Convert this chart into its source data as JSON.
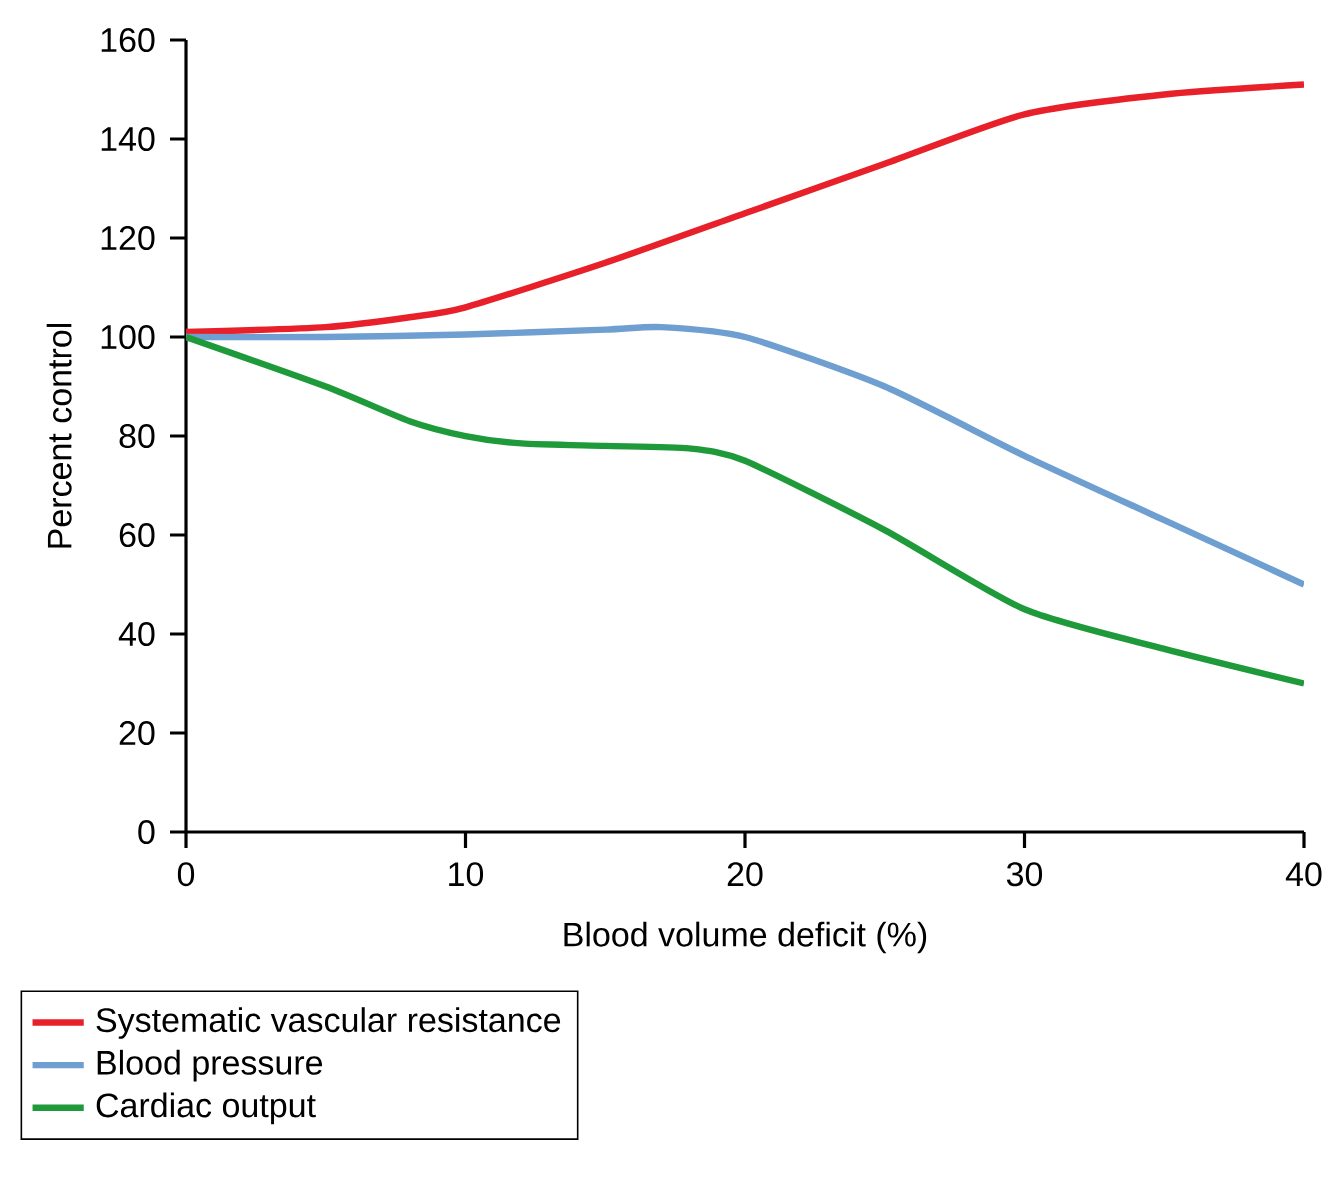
{
  "chart_data": {
    "type": "line",
    "xlabel": "Blood volume deficit (%)",
    "ylabel": "Percent control",
    "xlim": [
      0,
      40
    ],
    "xticks": [
      0,
      10,
      20,
      30,
      40
    ],
    "ylim": [
      0,
      160
    ],
    "yticks": [
      0,
      20,
      40,
      60,
      80,
      100,
      120,
      140,
      160
    ],
    "grid": false,
    "legend": "bottom",
    "marker": "none",
    "line_style": "solid",
    "series": [
      {
        "name": "Systematic vascular resistance",
        "color": "#e8202a",
        "x": [
          0,
          5,
          8,
          10,
          15,
          20,
          25,
          30,
          35,
          40
        ],
        "values": [
          101,
          102,
          104,
          106,
          115,
          125,
          135,
          145,
          149,
          151
        ]
      },
      {
        "name": "Blood pressure",
        "color": "#6e9fd0",
        "x": [
          0,
          5,
          10,
          15,
          17,
          20,
          25,
          30,
          35,
          40
        ],
        "values": [
          100,
          100,
          100.5,
          101.5,
          102,
          100,
          90,
          76,
          63,
          50
        ]
      },
      {
        "name": "Cardiac output",
        "color": "#1f9a3a",
        "x": [
          0,
          5,
          8,
          10,
          12,
          15,
          18,
          20,
          25,
          30,
          35,
          40
        ],
        "values": [
          100,
          90,
          83,
          80,
          78.5,
          78,
          77.5,
          75,
          61,
          45,
          37,
          30
        ]
      }
    ]
  }
}
